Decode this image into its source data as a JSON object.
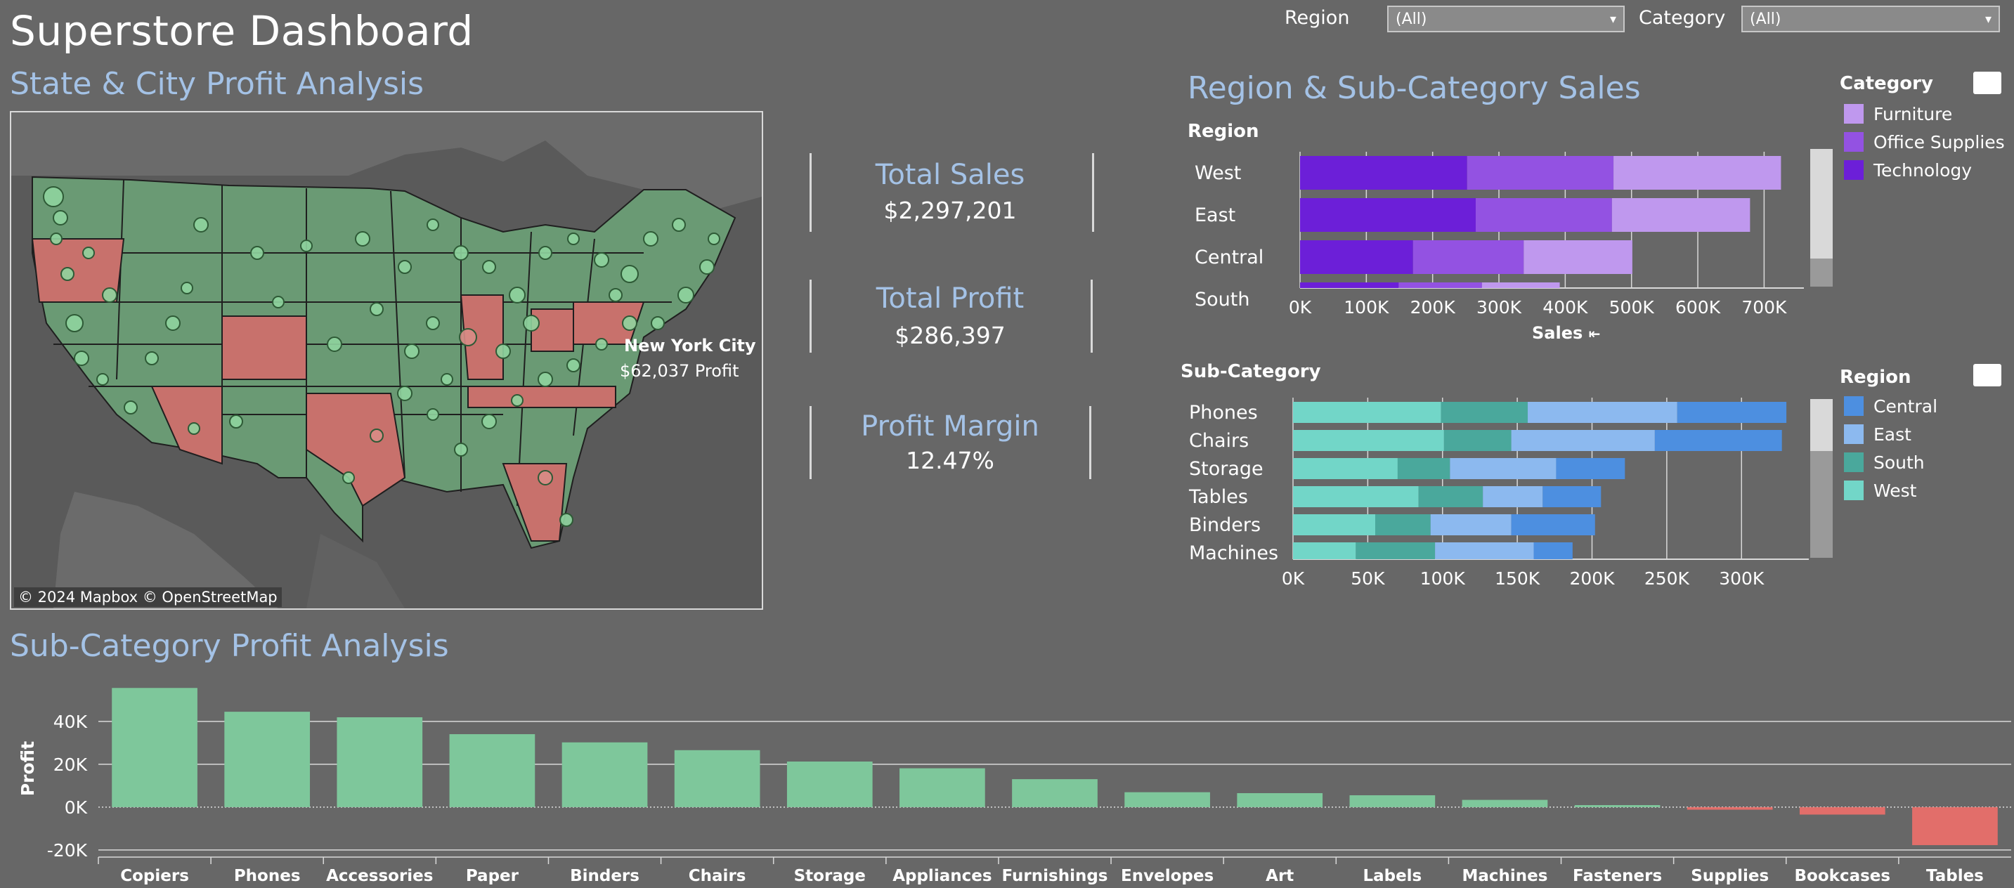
{
  "dashboard": {
    "title": "Superstore Dashboard"
  },
  "filters": {
    "region_label": "Region",
    "region_value": "(All)",
    "category_label": "Category",
    "category_value": "(All)"
  },
  "map_section": {
    "title": "State & City Profit Analysis",
    "tooltip_city": "New York City",
    "tooltip_profit": "$62,037 Profit",
    "credit": "© 2024 Mapbox  © OpenStreetMap",
    "colors": {
      "profit": "#6a9a74",
      "loss": "#c8716c",
      "land": "#6b6b6b",
      "water": "#5a5a5a"
    }
  },
  "kpis": [
    {
      "title": "Total Sales",
      "value": "$2,297,201"
    },
    {
      "title": "Total Profit",
      "value": "$286,397"
    },
    {
      "title": "Profit Margin",
      "value": "12.47%"
    }
  ],
  "region_sales": {
    "title": "Region & Sub-Category Sales",
    "row_header": "Region",
    "x_label": "Sales",
    "legend_title": "Category",
    "legend": [
      {
        "name": "Furniture",
        "color": "#bf98ee"
      },
      {
        "name": "Office Supplies",
        "color": "#9352e2"
      },
      {
        "name": "Technology",
        "color": "#6c1fd8"
      }
    ]
  },
  "subcat_sales": {
    "row_header": "Sub-Category",
    "legend_title": "Region",
    "legend": [
      {
        "name": "Central",
        "color": "#4d8fe0"
      },
      {
        "name": "East",
        "color": "#8cb9ef"
      },
      {
        "name": "South",
        "color": "#4aa89c"
      },
      {
        "name": "West",
        "color": "#72d6c8"
      }
    ]
  },
  "profit_section": {
    "title": "Sub-Category Profit Analysis",
    "colors": {
      "positive": "#7ec79b",
      "negative": "#e26e6a"
    }
  },
  "chart_data": [
    {
      "type": "bar",
      "orientation": "horizontal",
      "stacked": true,
      "categories": [
        "West",
        "East",
        "Central",
        "South"
      ],
      "series": [
        {
          "name": "Technology",
          "values": [
            251992,
            264974,
            170416,
            148772
          ]
        },
        {
          "name": "Office Supplies",
          "values": [
            220853,
            205516,
            167026,
            125651
          ]
        },
        {
          "name": "Furniture",
          "values": [
            252613,
            208291,
            163797,
            117299
          ]
        }
      ],
      "xlabel": "Sales",
      "ylabel": "Region",
      "xlim": [
        0,
        760000
      ],
      "xticks": [
        "0K",
        "100K",
        "200K",
        "300K",
        "400K",
        "500K",
        "600K",
        "700K"
      ],
      "grid": true,
      "legend": "right"
    },
    {
      "type": "bar",
      "orientation": "horizontal",
      "stacked": true,
      "categories": [
        "Phones",
        "Chairs",
        "Storage",
        "Tables",
        "Binders",
        "Machines"
      ],
      "series": [
        {
          "name": "West",
          "values": [
            99000,
            101000,
            70000,
            84000,
            55000,
            42000
          ]
        },
        {
          "name": "South",
          "values": [
            58000,
            45000,
            35000,
            43000,
            37000,
            53000
          ]
        },
        {
          "name": "East",
          "values": [
            100000,
            96000,
            71000,
            40000,
            54000,
            66000
          ]
        },
        {
          "name": "Central",
          "values": [
            73000,
            85000,
            46000,
            39000,
            56000,
            26000
          ]
        }
      ],
      "ylabel": "Sub-Category",
      "xlim": [
        0,
        345000
      ],
      "xticks": [
        "0K",
        "50K",
        "100K",
        "150K",
        "200K",
        "250K",
        "300K"
      ],
      "grid": true,
      "legend": "right"
    },
    {
      "type": "bar",
      "categories": [
        "Copiers",
        "Phones",
        "Accessories",
        "Paper",
        "Binders",
        "Chairs",
        "Storage",
        "Appliances",
        "Furnishings",
        "Envelopes",
        "Art",
        "Labels",
        "Machines",
        "Fasteners",
        "Supplies",
        "Bookcases",
        "Tables"
      ],
      "values": [
        55618,
        44516,
        41937,
        34054,
        30222,
        26590,
        21279,
        18138,
        13059,
        6964,
        6528,
        5546,
        3385,
        950,
        -1189,
        -3473,
        -17725
      ],
      "ylabel": "Profit",
      "ylim": [
        -22000,
        58000
      ],
      "yticks": [
        "-20K",
        "0K",
        "20K",
        "40K"
      ],
      "grid": true
    }
  ]
}
